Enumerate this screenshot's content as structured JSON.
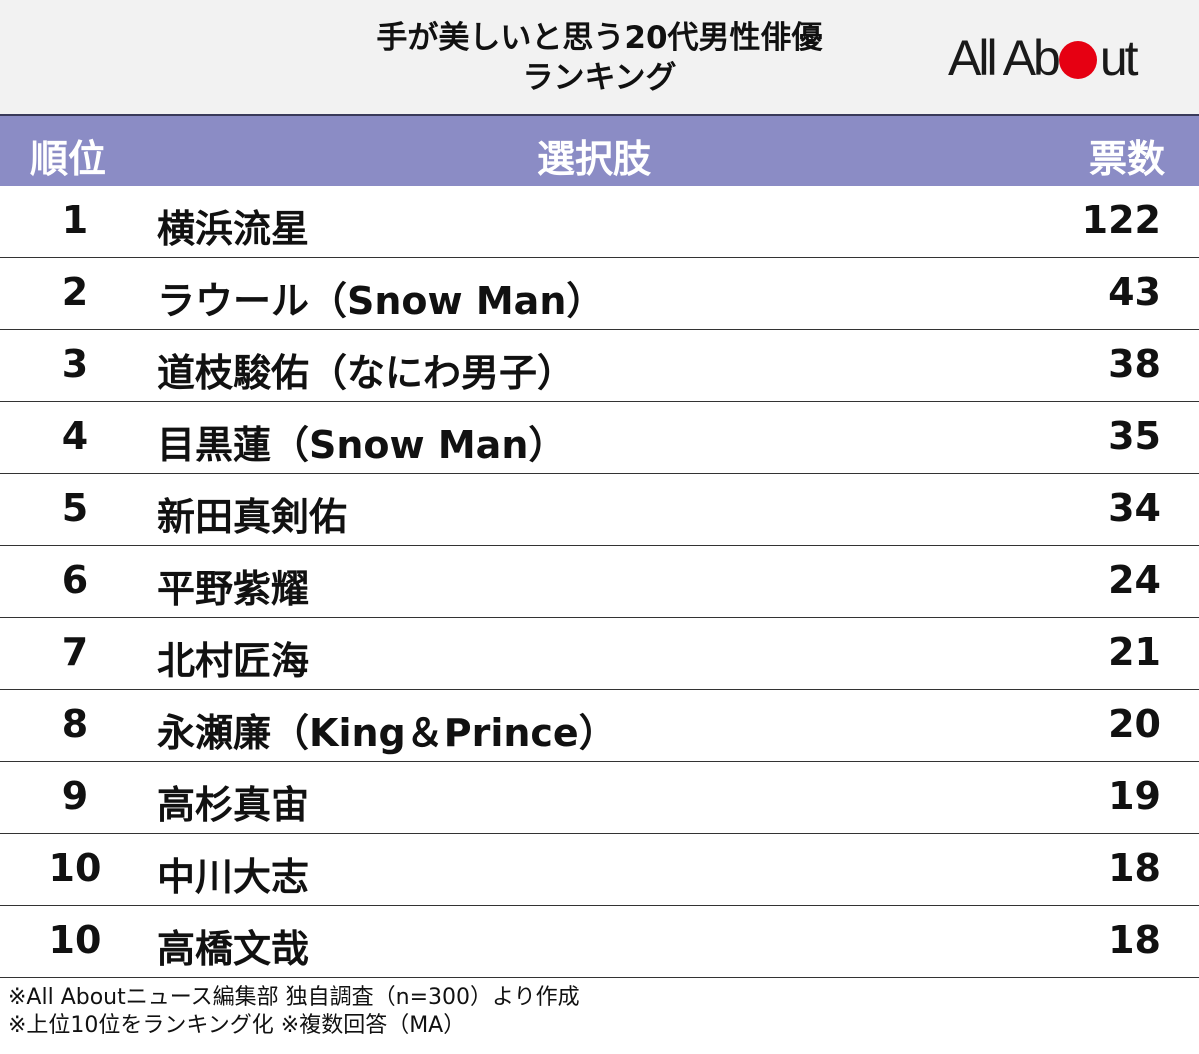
{
  "title": {
    "line1": "手が美しいと思う20代男性俳優",
    "line2": "ランキング"
  },
  "logo": {
    "text_before": "All Ab",
    "text_after": "ut",
    "accent_color": "#e60012"
  },
  "table": {
    "headers": {
      "rank": "順位",
      "choice": "選択肢",
      "votes": "票数"
    },
    "header_color": "#8b8cc5"
  },
  "chart_data": {
    "type": "table",
    "title": "手が美しいと思う20代男性俳優ランキング",
    "columns": [
      "順位",
      "選択肢",
      "票数"
    ],
    "rows": [
      {
        "rank": "1",
        "name": "横浜流星",
        "votes": "122"
      },
      {
        "rank": "2",
        "name": "ラウール（Snow Man）",
        "votes": "43"
      },
      {
        "rank": "3",
        "name": "道枝駿佑（なにわ男子）",
        "votes": "38"
      },
      {
        "rank": "4",
        "name": "目黒蓮（Snow Man）",
        "votes": "35"
      },
      {
        "rank": "5",
        "name": "新田真剣佑",
        "votes": "34"
      },
      {
        "rank": "6",
        "name": "平野紫耀",
        "votes": "24"
      },
      {
        "rank": "7",
        "name": "北村匠海",
        "votes": "21"
      },
      {
        "rank": "8",
        "name": "永瀬廉（King＆Prince）",
        "votes": "20"
      },
      {
        "rank": "9",
        "name": "高杉真宙",
        "votes": "19"
      },
      {
        "rank": "10",
        "name": "中川大志",
        "votes": "18"
      },
      {
        "rank": "10",
        "name": "高橋文哉",
        "votes": "18"
      }
    ]
  },
  "notes": {
    "line1": "※All Aboutニュース編集部 独自調査（n=300）より作成",
    "line2": "※上位10位をランキング化 ※複数回答（MA）"
  }
}
